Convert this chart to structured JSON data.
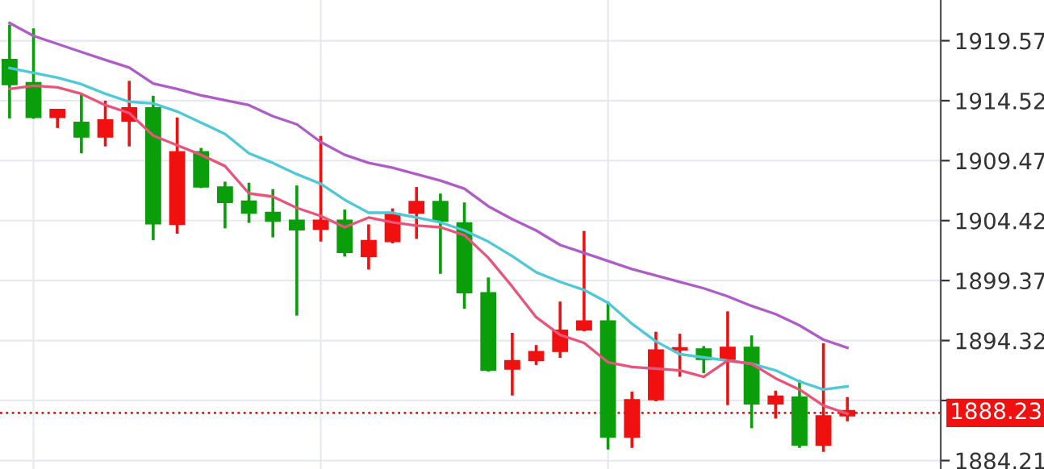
{
  "chart_data": {
    "type": "candlestick",
    "categories": [
      null,
      null,
      null,
      null,
      null,
      null,
      null,
      null,
      null,
      null,
      null,
      null,
      null,
      null,
      null,
      null,
      null,
      null,
      null,
      null,
      null,
      null,
      null,
      null,
      null,
      null,
      null,
      null,
      null,
      null,
      null,
      null,
      null,
      null,
      null,
      null
    ],
    "ohlc": [
      [
        1915.87,
        1920.92,
        1913.03,
        1917.99
      ],
      [
        1913.11,
        1920.61,
        1913.0,
        1916.05
      ],
      [
        1913.79,
        1913.79,
        1912.22,
        1913.11
      ],
      [
        1911.45,
        1915.06,
        1910.09,
        1912.71
      ],
      [
        1912.9,
        1914.52,
        1910.67,
        1911.45
      ],
      [
        1913.92,
        1916.19,
        1910.67,
        1912.8
      ],
      [
        1904.14,
        1914.93,
        1902.78,
        1913.92
      ],
      [
        1910.23,
        1913.11,
        1903.32,
        1904.1
      ],
      [
        1907.25,
        1910.54,
        1907.16,
        1910.23
      ],
      [
        1905.94,
        1907.7,
        1903.77,
        1907.25
      ],
      [
        1905.04,
        1907.61,
        1904.23,
        1906.07
      ],
      [
        1904.37,
        1907.07,
        1903.01,
        1905.12
      ],
      [
        1903.63,
        1907.38,
        1896.42,
        1904.45
      ],
      [
        1904.45,
        1911.54,
        1902.65,
        1903.69
      ],
      [
        1901.74,
        1905.35,
        1901.39,
        1904.45
      ],
      [
        1902.74,
        1904.1,
        1900.3,
        1901.39
      ],
      [
        1905.04,
        1905.45,
        1902.5,
        1902.65
      ],
      [
        1906.03,
        1907.25,
        1902.88,
        1905.04
      ],
      [
        1904.37,
        1906.7,
        1899.94,
        1906.03
      ],
      [
        1898.35,
        1905.94,
        1897.0,
        1904.23
      ],
      [
        1891.81,
        1899.63,
        1891.7,
        1898.35
      ],
      [
        1892.63,
        1894.97,
        1889.69,
        1891.91
      ],
      [
        1893.4,
        1893.94,
        1892.26,
        1892.63
      ],
      [
        1895.2,
        1897.6,
        1892.86,
        1893.4
      ],
      [
        1895.97,
        1903.55,
        1895.1,
        1895.2
      ],
      [
        1886.17,
        1897.6,
        1885.14,
        1895.97
      ],
      [
        1889.34,
        1890.01,
        1885.28,
        1886.17
      ],
      [
        1893.53,
        1895.06,
        1889.2,
        1889.34
      ],
      [
        1893.71,
        1894.89,
        1891.27,
        1893.53
      ],
      [
        1892.72,
        1893.85,
        1891.58,
        1893.62
      ],
      [
        1893.76,
        1896.78,
        1888.88,
        1892.72
      ],
      [
        1888.97,
        1894.75,
        1886.94,
        1893.76
      ],
      [
        1889.65,
        1890.1,
        1887.75,
        1888.97
      ],
      [
        1885.49,
        1891.0,
        1885.28,
        1889.56
      ],
      [
        1887.98,
        1894.08,
        1884.95,
        1885.49
      ],
      [
        1888.43,
        1889.56,
        1887.52,
        1887.98
      ]
    ],
    "colors": [
      "#0a9e0a",
      "#0a9e0a",
      "#f01010",
      "#0a9e0a",
      "#f01010",
      "#f01010",
      "#0a9e0a",
      "#f01010",
      "#0a9e0a",
      "#0a9e0a",
      "#0a9e0a",
      "#0a9e0a",
      "#0a9e0a",
      "#f01010",
      "#0a9e0a",
      "#f01010",
      "#f01010",
      "#f01010",
      "#0a9e0a",
      "#0a9e0a",
      "#0a9e0a",
      "#f01010",
      "#f01010",
      "#f01010",
      "#f01010",
      "#0a9e0a",
      "#f01010",
      "#f01010",
      "#f01010",
      "#0a9e0a",
      "#f01010",
      "#0a9e0a",
      "#f01010",
      "#0a9e0a",
      "#f01010",
      "#f01010"
    ],
    "series": [
      {
        "type": "line",
        "color": "#b05cc8",
        "values": [
          1921.06,
          1919.98,
          1919.3,
          1918.62,
          1917.95,
          1917.31,
          1915.96,
          1915.51,
          1914.97,
          1914.56,
          1914.15,
          1913.21,
          1912.53,
          1911.04,
          1909.96,
          1909.28,
          1908.87,
          1908.33,
          1907.79,
          1907.11,
          1905.63,
          1904.54,
          1903.59,
          1902.37,
          1901.7,
          1901.02,
          1900.34,
          1899.8,
          1899.26,
          1898.72,
          1898.04,
          1897.23,
          1896.55,
          1895.6,
          1894.39,
          1893.71
        ]
      },
      {
        "type": "line",
        "color": "#4fc8d8",
        "values": [
          1917.27,
          1916.86,
          1916.46,
          1915.91,
          1915.1,
          1914.43,
          1914.29,
          1913.61,
          1912.67,
          1911.72,
          1910.09,
          1909.28,
          1908.33,
          1907.52,
          1906.17,
          1905.08,
          1905.08,
          1904.68,
          1904.27,
          1903.59,
          1902.65,
          1901.43,
          1900.07,
          1899.26,
          1898.58,
          1897.5,
          1895.74,
          1894.25,
          1893.17,
          1892.9,
          1892.63,
          1892.36,
          1891.81,
          1890.87,
          1890.19,
          1890.46
        ]
      },
      {
        "type": "line",
        "color": "#e8557a",
        "values": [
          1915.51,
          1915.78,
          1915.64,
          1915.1,
          1914.15,
          1913.48,
          1911.58,
          1910.77,
          1909.96,
          1909.01,
          1906.71,
          1906.44,
          1905.49,
          1904.81,
          1903.86,
          1904.68,
          1904.27,
          1904.0,
          1903.86,
          1903.19,
          1901.29,
          1898.86,
          1896.28,
          1894.79,
          1894.12,
          1892.49,
          1892.09,
          1891.95,
          1891.81,
          1891.27,
          1892.63,
          1892.36,
          1891.14,
          1890.19,
          1888.84,
          1888.16
        ]
      }
    ],
    "ylim": [
      1883.5,
      1923.0
    ],
    "yticks": [
      1884.21,
      {
        "value": 1889.27,
        "label": null
      },
      1894.32,
      1899.37,
      1904.42,
      1909.47,
      1914.52,
      1919.57
    ],
    "ref_lines": [
      {
        "axis": "y",
        "value": 1888.23,
        "label": "1888.23",
        "color": "#f01010",
        "line_style": "dotted"
      }
    ],
    "grid": true,
    "tick_labels": "y",
    "marker": "none",
    "line_style": "solid"
  }
}
